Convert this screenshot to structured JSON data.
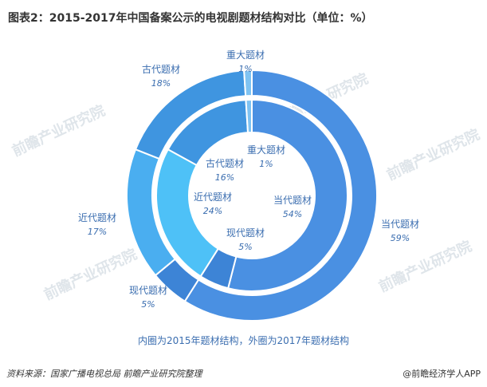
{
  "title": "图表2：2015-2017年中国备案公示的电视剧题材结构对比（单位：%）",
  "caption": "内圈为2015年题材结构，外圈为2017年题材结构",
  "footer": {
    "source": "资料来源：国家广播电视总局 前瞻产业研究院整理",
    "brand": "@前瞻经济学人APP"
  },
  "watermark": "前瞻产业研究院",
  "chart_data": [
    {
      "type": "pie",
      "ring": "outer",
      "categories": [
        "当代题材",
        "现代题材",
        "近代题材",
        "古代题材",
        "重大题材"
      ],
      "values": [
        59,
        5,
        17,
        18,
        1
      ],
      "colors": [
        "#4a90e2",
        "#3d84d6",
        "#4aaef0",
        "#3f95e0",
        "#7fc3f2"
      ]
    },
    {
      "type": "pie",
      "ring": "inner",
      "categories": [
        "当代题材",
        "现代题材",
        "近代题材",
        "古代题材",
        "重大题材"
      ],
      "values": [
        54,
        5,
        24,
        16,
        1
      ],
      "colors": [
        "#4a90e2",
        "#3d84d6",
        "#4ec1f7",
        "#3f95e0",
        "#7fc3f2"
      ]
    }
  ]
}
